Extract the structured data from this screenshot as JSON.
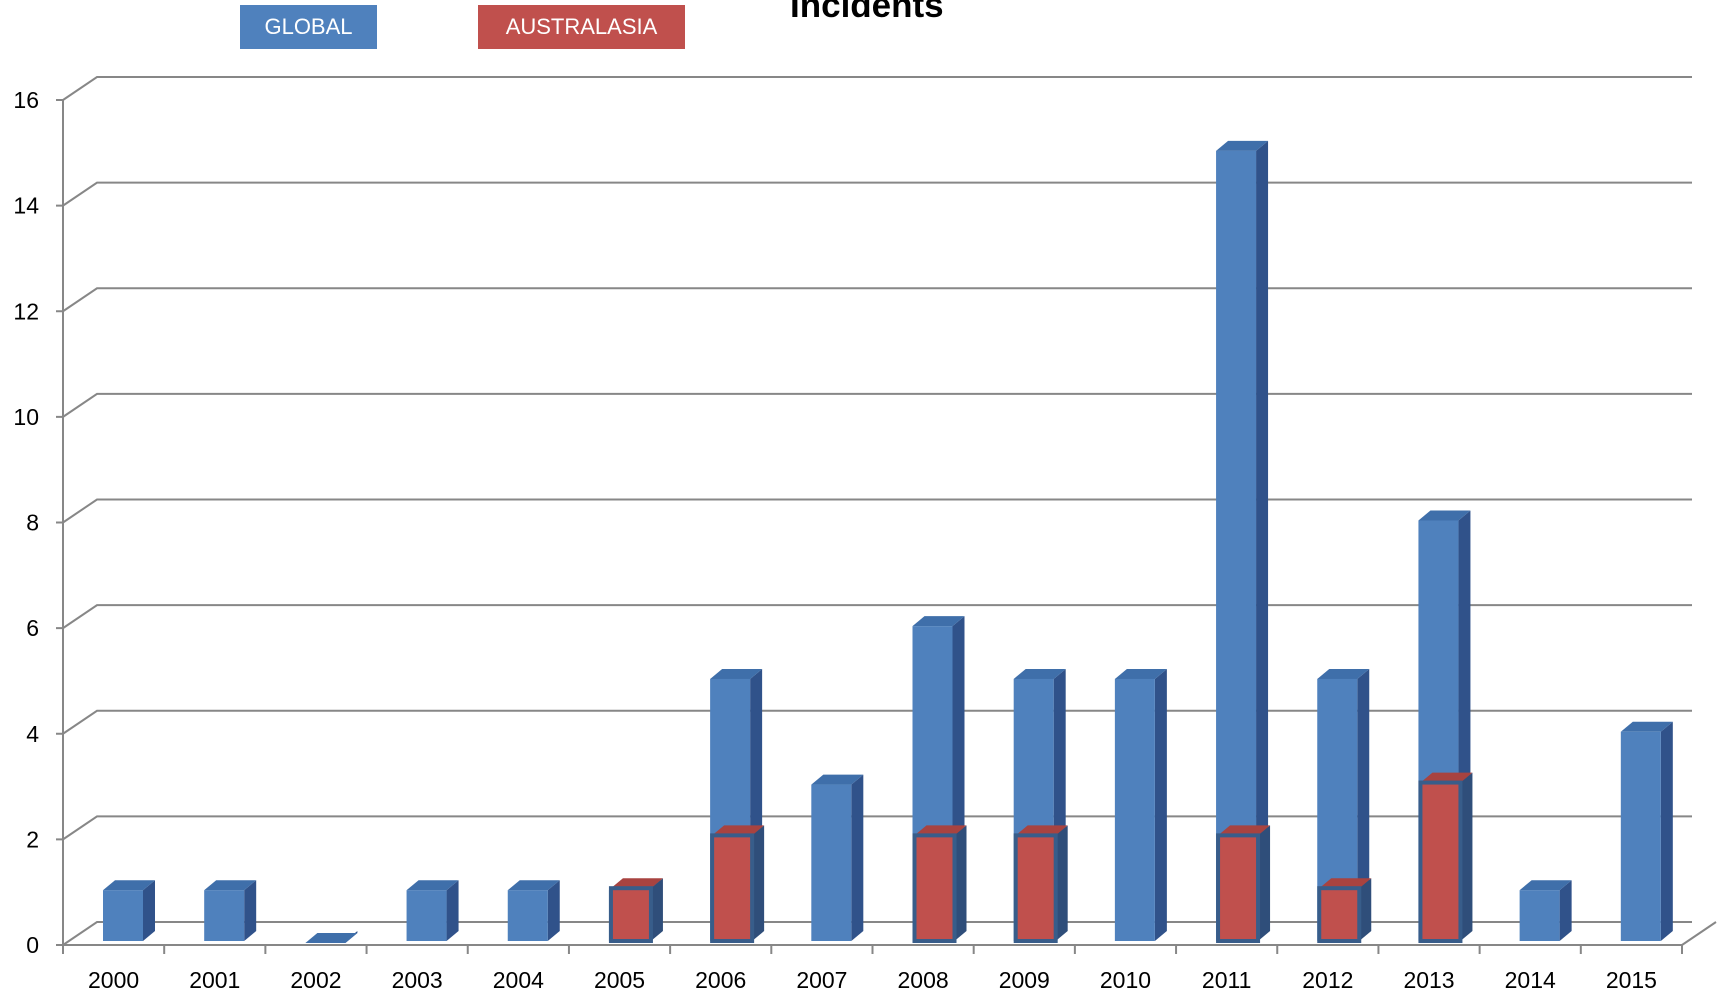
{
  "chart_data": {
    "type": "bar",
    "title": "Incidents",
    "xlabel": "",
    "ylabel": "",
    "ylim": [
      0,
      16
    ],
    "yticks": [
      "0",
      "2",
      "4",
      "6",
      "8",
      "10",
      "12",
      "14",
      "16"
    ],
    "categories": [
      "2000",
      "2001",
      "2002",
      "2003",
      "2004",
      "2005",
      "2006",
      "2007",
      "2008",
      "2009",
      "2010",
      "2011",
      "2012",
      "2013",
      "2014",
      "2015"
    ],
    "series": [
      {
        "name": "GLOBAL",
        "color": "#4f81bd",
        "values": [
          1,
          1,
          0,
          1,
          1,
          1,
          5,
          3,
          6,
          5,
          5,
          15,
          5,
          8,
          1,
          4
        ]
      },
      {
        "name": "AUSTRALASIA",
        "color": "#c0504d",
        "values": [
          0,
          0,
          0,
          0,
          0,
          1,
          2,
          0,
          2,
          2,
          0,
          2,
          1,
          3,
          0,
          0
        ]
      }
    ],
    "grid": true,
    "legend": "top-left",
    "style": "3d-column"
  }
}
